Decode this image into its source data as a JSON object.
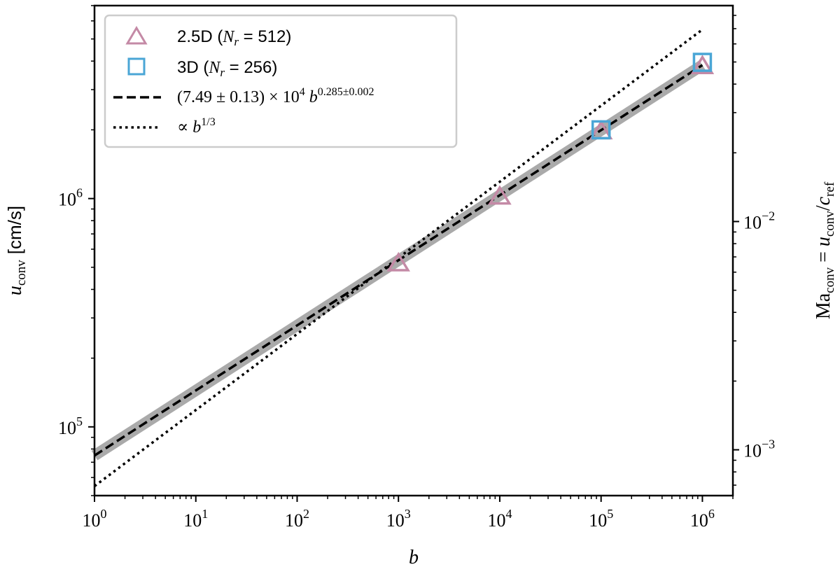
{
  "chart_data": {
    "type": "scatter",
    "title": "",
    "xlabel": {
      "base": "b"
    },
    "ylabel": {
      "base": "u",
      "subscript": "conv",
      "unit": "[cm/s]"
    },
    "y2label": {
      "left": "Ma",
      "left_sub": "conv",
      "mid": " = ",
      "u": "u",
      "u_sub": "conv",
      "slash": "/",
      "c": "c",
      "c_sub": "ref"
    },
    "xscale": "log",
    "yscale": "log",
    "xlim": [
      1,
      2000000
    ],
    "ylim": [
      50000,
      7000000
    ],
    "y2lim": [
      0.00063,
      0.0883
    ],
    "x_ticks": [
      {
        "value": 1,
        "base": "10",
        "exp": "0"
      },
      {
        "value": 10,
        "base": "10",
        "exp": "1"
      },
      {
        "value": 100,
        "base": "10",
        "exp": "2"
      },
      {
        "value": 1000,
        "base": "10",
        "exp": "3"
      },
      {
        "value": 10000,
        "base": "10",
        "exp": "4"
      },
      {
        "value": 100000,
        "base": "10",
        "exp": "5"
      },
      {
        "value": 1000000,
        "base": "10",
        "exp": "6"
      }
    ],
    "y_ticks": [
      {
        "value": 100000,
        "base": "10",
        "exp": "5"
      },
      {
        "value": 1000000,
        "base": "10",
        "exp": "6"
      }
    ],
    "y2_ticks": [
      {
        "value": 0.001,
        "base": "10",
        "exp": "−3"
      },
      {
        "value": 0.01,
        "base": "10",
        "exp": "−2"
      }
    ],
    "series": [
      {
        "name": "2.5D",
        "marker": "triangle",
        "color": "#c48aa6",
        "legend": {
          "pre": "2.5D (",
          "var": "N",
          "sub": "r",
          "post": " = 512)"
        },
        "x": [
          1000,
          10000,
          100000,
          1000000
        ],
        "y": [
          520000,
          1020000,
          1970000,
          3800000
        ]
      },
      {
        "name": "3D",
        "marker": "square",
        "color": "#4aa6d6",
        "legend": {
          "pre": "3D (",
          "var": "N",
          "sub": "r",
          "post": " = 256)"
        },
        "x": [
          100000,
          1000000
        ],
        "y": [
          2000000,
          3950000
        ]
      }
    ],
    "fit": {
      "coefficient": 74900,
      "exponent": 0.285,
      "band_color": "#aaaaaa",
      "legend": {
        "pre": "(7.49 ± 0.13) × 10",
        "pre_exp": "4",
        "var": " b",
        "exp": "0.285±0.002"
      }
    },
    "reference": {
      "coefficient": 55000,
      "exponent": 0.3333,
      "legend": {
        "pre": "∝ ",
        "var": "b",
        "exp": "1/3"
      }
    },
    "legend_position": "upper-left"
  }
}
